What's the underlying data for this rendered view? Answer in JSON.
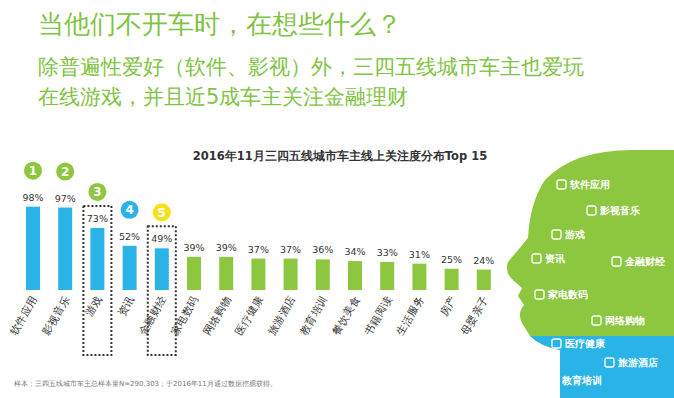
{
  "header": {
    "title": "当他们不开车时，在想些什么？",
    "subtitle": [
      "除普遍性爱好（软件、影视）外，三四五线城市车主也爱玩",
      "在线游戏，并且近5成车主关注金融理财"
    ]
  },
  "chart_data": {
    "type": "bar",
    "title": "2016年11月三四五线城市车主线上关注度分布Top 15",
    "categories": [
      "软件应用",
      "影视音乐",
      "游戏",
      "资讯",
      "金融财经",
      "家电数码",
      "网络购物",
      "医疗健康",
      "旅游酒店",
      "教育培训",
      "餐饮美食",
      "书籍阅读",
      "生活服务",
      "房产",
      "母婴亲子"
    ],
    "values": [
      98,
      97,
      73,
      52,
      49,
      39,
      39,
      37,
      37,
      36,
      34,
      33,
      31,
      25,
      24
    ],
    "value_labels": [
      "98%",
      "97%",
      "73%",
      "52%",
      "49%",
      "39%",
      "39%",
      "37%",
      "37%",
      "36%",
      "34%",
      "33%",
      "31%",
      "25%",
      "24%"
    ],
    "colors": [
      "#2ab3e6",
      "#2ab3e6",
      "#2ab3e6",
      "#2ab3e6",
      "#2ab3e6",
      "#8dc63f",
      "#8dc63f",
      "#8dc63f",
      "#8dc63f",
      "#8dc63f",
      "#8dc63f",
      "#8dc63f",
      "#8dc63f",
      "#8dc63f",
      "#8dc63f"
    ],
    "ylim": [
      0,
      100
    ],
    "grid": false,
    "data_labels": true,
    "tick_labels": "x",
    "annotations": [
      {
        "category": "软件应用",
        "text": "1",
        "color": "#8dc63f"
      },
      {
        "category": "影视音乐",
        "text": "2",
        "color": "#8dc63f"
      },
      {
        "category": "游戏",
        "text": "3",
        "color": "#8dc63f",
        "line_style": "dotted"
      },
      {
        "category": "资讯",
        "text": "4",
        "color": "#2ab3e6"
      },
      {
        "category": "金融财经",
        "text": "5",
        "color": "#f5e11a",
        "line_style": "dotted"
      }
    ]
  },
  "infographic": {
    "labels": [
      "软件应用",
      "影视音乐",
      "游戏",
      "资讯",
      "金融财经",
      "家电数码",
      "网络购物",
      "医疗健康",
      "旅游酒店",
      "教育培训"
    ]
  },
  "footnote": "样本：三四五线城市车主总样本量N=290,303；于2016年11月通过数据挖掘获得。"
}
